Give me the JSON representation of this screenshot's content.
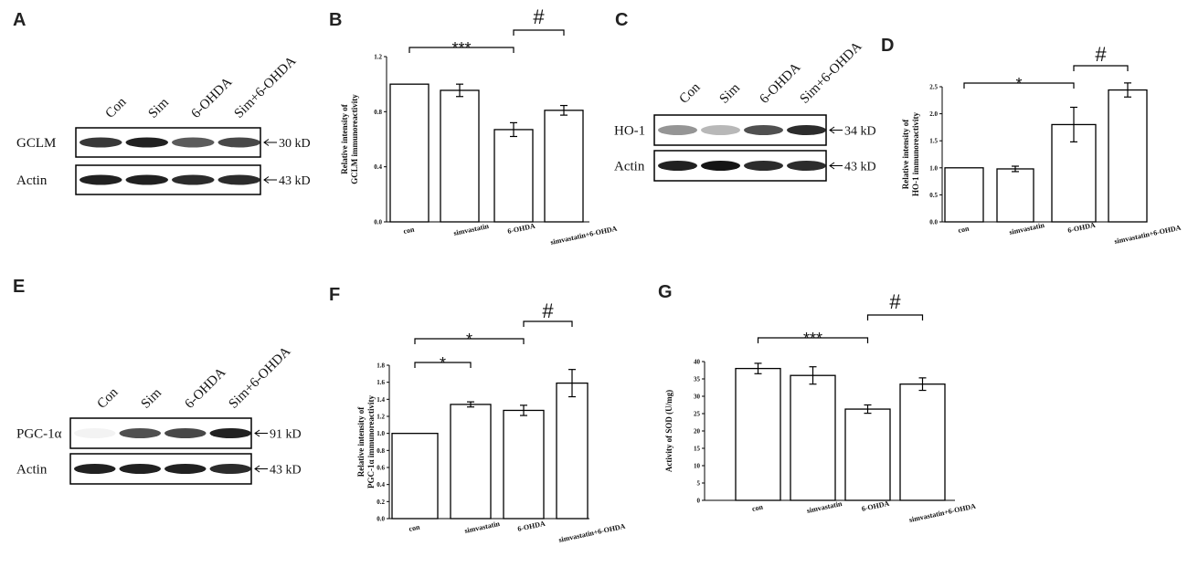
{
  "panels": {
    "A": {
      "letter": "A",
      "lanes": [
        "Con",
        "Sim",
        "6-OHDA",
        "Sim+6-OHDA"
      ],
      "rows": [
        {
          "protein": "GCLM",
          "kd": "30 kD",
          "intensity": [
            0.85,
            0.95,
            0.7,
            0.78
          ]
        },
        {
          "protein": "Actin",
          "kd": "43 kD",
          "intensity": [
            0.95,
            0.95,
            0.9,
            0.9
          ]
        }
      ]
    },
    "C": {
      "letter": "C",
      "lanes": [
        "Con",
        "Sim",
        "6-OHDA",
        "Sim+6-OHDA"
      ],
      "rows": [
        {
          "protein": "HO-1",
          "kd": "34 kD",
          "intensity": [
            0.45,
            0.3,
            0.75,
            0.9
          ]
        },
        {
          "protein": "Actin",
          "kd": "43 kD",
          "intensity": [
            0.95,
            1.0,
            0.9,
            0.9
          ]
        }
      ]
    },
    "E": {
      "letter": "E",
      "lanes": [
        "Con",
        "Sim",
        "6-OHDA",
        "Sim+6-OHDA"
      ],
      "rows": [
        {
          "protein": "PGC-1α",
          "kd": "91 kD",
          "intensity": [
            0.05,
            0.75,
            0.78,
            0.95
          ]
        },
        {
          "protein": "Actin",
          "kd": "43 kD",
          "intensity": [
            0.95,
            0.95,
            0.95,
            0.9
          ]
        }
      ]
    }
  },
  "chart_data": [
    {
      "letter": "B",
      "type": "bar",
      "categories": [
        "con",
        "simvastatin",
        "6-OHDA",
        "simvastatin+6-OHDA"
      ],
      "values": [
        1.0,
        0.955,
        0.67,
        0.81
      ],
      "errors": [
        0,
        0.045,
        0.05,
        0.035
      ],
      "ylabel_lines": [
        "Relative intensity of",
        "GCLM immunoreactivity"
      ],
      "ylim": [
        0,
        1.2
      ],
      "ticks": [
        "0.0",
        "0.4",
        "0.8",
        "1.2"
      ],
      "tick_values": [
        0,
        0.4,
        0.8,
        1.2
      ],
      "brackets": [
        {
          "from": 0,
          "to": 2,
          "label": "***"
        },
        {
          "from": 2,
          "to": 3,
          "label": "#"
        }
      ]
    },
    {
      "letter": "D",
      "type": "bar",
      "categories": [
        "con",
        "simvastatin",
        "6-OHDA",
        "simvastatin+6-OHDA"
      ],
      "values": [
        1.0,
        0.98,
        1.8,
        2.44
      ],
      "errors": [
        0,
        0.05,
        0.32,
        0.13
      ],
      "ylabel_lines": [
        "Relative intensity of",
        "HO-1 immunoreactivity"
      ],
      "ylim": [
        0,
        2.5
      ],
      "ticks": [
        "0.0",
        "0.5",
        "1.0",
        "1.5",
        "2.0",
        "2.5"
      ],
      "tick_values": [
        0,
        0.5,
        1.0,
        1.5,
        2.0,
        2.5
      ],
      "brackets": [
        {
          "from": 0,
          "to": 2,
          "label": "*"
        },
        {
          "from": 2,
          "to": 3,
          "label": "#"
        }
      ]
    },
    {
      "letter": "F",
      "type": "bar",
      "categories": [
        "con",
        "simvastatin",
        "6-OHDA",
        "simvastatin+6-OHDA"
      ],
      "values": [
        1.0,
        1.34,
        1.27,
        1.59
      ],
      "errors": [
        0,
        0.03,
        0.06,
        0.16
      ],
      "ylabel_lines": [
        "Relative intensity of",
        "PGC-1α immunoreactivity"
      ],
      "ylim": [
        0,
        1.8
      ],
      "ticks": [
        "0.0",
        "0.2",
        "0.4",
        "0.6",
        "0.8",
        "1.0",
        "1.2",
        "1.4",
        "1.6",
        "1.8"
      ],
      "tick_values": [
        0,
        0.2,
        0.4,
        0.6,
        0.8,
        1.0,
        1.2,
        1.4,
        1.6,
        1.8
      ],
      "brackets": [
        {
          "from": 0,
          "to": 1,
          "label": "*"
        },
        {
          "from": 0,
          "to": 2,
          "label": "*"
        },
        {
          "from": 2,
          "to": 3,
          "label": "#"
        }
      ]
    },
    {
      "letter": "G",
      "type": "bar",
      "categories": [
        "con",
        "simvastatin",
        "6-OHDA",
        "simvastatin+6-OHDA"
      ],
      "values": [
        38,
        36,
        26.3,
        33.5
      ],
      "errors": [
        1.5,
        2.5,
        1.2,
        1.8
      ],
      "ylabel_lines": [
        "Activity of SOD (U/mg)"
      ],
      "ylim": [
        0,
        40
      ],
      "ticks": [
        "0",
        "5",
        "10",
        "15",
        "20",
        "25",
        "30",
        "35",
        "40"
      ],
      "tick_values": [
        0,
        5,
        10,
        15,
        20,
        25,
        30,
        35,
        40
      ],
      "brackets": [
        {
          "from": 0,
          "to": 2,
          "label": "***"
        },
        {
          "from": 2,
          "to": 3,
          "label": "#"
        }
      ]
    }
  ]
}
